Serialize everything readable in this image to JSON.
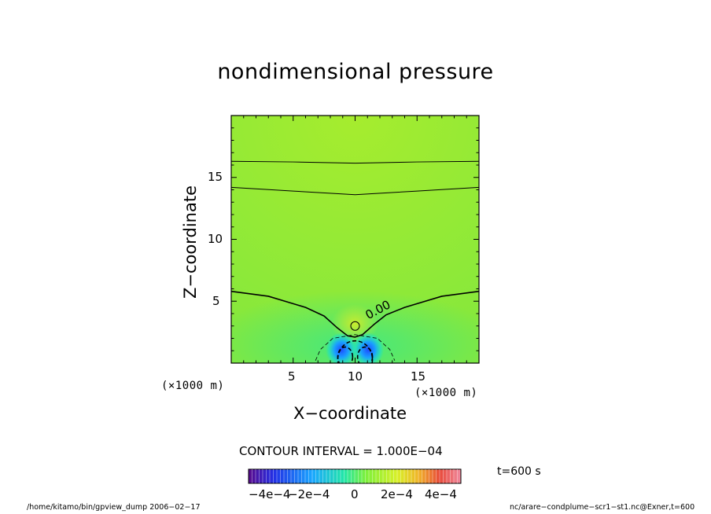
{
  "colors": {
    "field_background": "#86e83c",
    "contour_line": "#000000",
    "low_pressure": "#2060ff",
    "colorbar_scale": [
      "#5a0a8c",
      "#2230e6",
      "#1aa6ff",
      "#22e6a8",
      "#7cf03c",
      "#d8f028",
      "#f0b428",
      "#e84a3a",
      "#f08aa0"
    ]
  },
  "chart_data": {
    "type": "contour",
    "title": "nondimensional pressure",
    "xlabel": "X−coordinate",
    "ylabel": "Z−coordinate",
    "x_unit": "(×1000 m)",
    "y_unit": "(×1000 m)",
    "xlim": [
      0,
      20
    ],
    "ylim": [
      0,
      20
    ],
    "x_ticks": [
      5,
      10,
      15
    ],
    "y_ticks": [
      5,
      10,
      15
    ],
    "contour_interval_label": "CONTOUR INTERVAL = 1.000E−04",
    "contour_label": "0.00",
    "contours": [
      {
        "level": "upper",
        "style": "solid",
        "x": [
          0,
          5,
          10,
          15,
          20
        ],
        "z": [
          16.3,
          16.25,
          16.15,
          16.25,
          16.3
        ]
      },
      {
        "level": "upper",
        "style": "solid",
        "x": [
          0,
          5,
          10,
          15,
          20
        ],
        "z": [
          14.2,
          13.9,
          13.6,
          13.9,
          14.2
        ]
      },
      {
        "level": "0.00",
        "style": "solid",
        "x": [
          0,
          3,
          6,
          7.5,
          8.5,
          9.4,
          10,
          10.6,
          11.5,
          12.5,
          14,
          17,
          20
        ],
        "z": [
          5.8,
          5.4,
          4.5,
          3.8,
          2.9,
          2.2,
          2.1,
          2.3,
          3.1,
          3.9,
          4.5,
          5.4,
          5.8
        ]
      },
      {
        "level": "small-loop",
        "style": "solid",
        "closed": true,
        "center": [
          10,
          3.0
        ],
        "radius": [
          0.35,
          0.35
        ]
      },
      {
        "level": "negative",
        "style": "dashed",
        "closed": true,
        "center": [
          10,
          0.3
        ],
        "radius": [
          1.4,
          1.5
        ]
      },
      {
        "level": "negative",
        "style": "dashed",
        "closed": true,
        "center": [
          9.2,
          0.5
        ],
        "radius": [
          0.6,
          0.8
        ]
      },
      {
        "level": "negative",
        "style": "dashed",
        "closed": true,
        "center": [
          10.8,
          0.5
        ],
        "radius": [
          0.6,
          0.8
        ]
      },
      {
        "level": "negative-outer",
        "style": "dashed-thin",
        "x": [
          6.8,
          7.2,
          8.2,
          10,
          11.8,
          12.8,
          13.2
        ],
        "z": [
          0.2,
          1.1,
          2.0,
          2.3,
          2.0,
          1.1,
          0.2
        ]
      }
    ],
    "colorbar": {
      "min": -0.0005,
      "max": 0.0005,
      "tick_labels": [
        "−4e−4",
        "−2e−4",
        "0",
        "2e−4",
        "4e−4"
      ],
      "tick_values": [
        -0.0004,
        -0.0002,
        0,
        0.0002,
        0.0004
      ]
    },
    "time_label": "t=600 s",
    "footer_left": "/home/kitamo/bin/gpview_dump  2006−02−17",
    "footer_right": "nc/arare−condplume−scr1−st1.nc@Exner,t=600"
  }
}
